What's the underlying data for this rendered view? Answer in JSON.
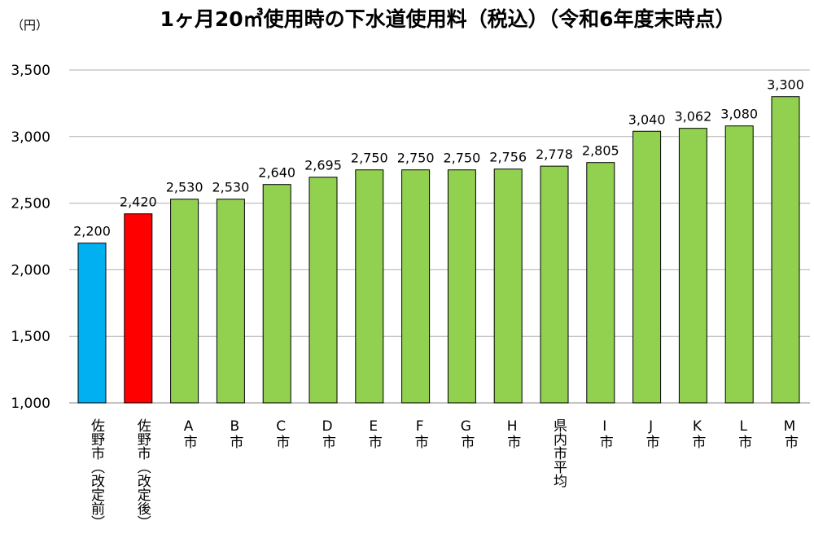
{
  "chart_data": {
    "type": "bar",
    "title": "1ヶ月20㎥使用時の下水道使用料（税込）（令和6年度末時点）",
    "ylabel": "（円）",
    "xlabel": "",
    "ylim": [
      1000,
      3500
    ],
    "yticks": [
      1000,
      1500,
      2000,
      2500,
      3000,
      3500
    ],
    "ytick_labels": [
      "1,000",
      "1,500",
      "2,000",
      "2,500",
      "3,000",
      "3,500"
    ],
    "grid": true,
    "categories": [
      "佐野市（改定前）",
      "佐野市（改定後）",
      "A市",
      "B市",
      "C市",
      "D市",
      "E市",
      "F市",
      "G市",
      "H市",
      "県内市平均",
      "I市",
      "J市",
      "K市",
      "L市",
      "M市"
    ],
    "values": [
      2200,
      2420,
      2530,
      2530,
      2640,
      2695,
      2750,
      2750,
      2750,
      2756,
      2778,
      2805,
      3040,
      3062,
      3080,
      3300
    ],
    "data_labels": [
      "2,200",
      "2,420",
      "2,530",
      "2,530",
      "2,640",
      "2,695",
      "2,750",
      "2,750",
      "2,750",
      "2,756",
      "2,778",
      "2,805",
      "3,040",
      "3,062",
      "3,080",
      "3,300"
    ],
    "colors": [
      "#00B0F0",
      "#FF0000",
      "#92D050",
      "#92D050",
      "#92D050",
      "#92D050",
      "#92D050",
      "#92D050",
      "#92D050",
      "#92D050",
      "#92D050",
      "#92D050",
      "#92D050",
      "#92D050",
      "#92D050",
      "#92D050"
    ]
  }
}
